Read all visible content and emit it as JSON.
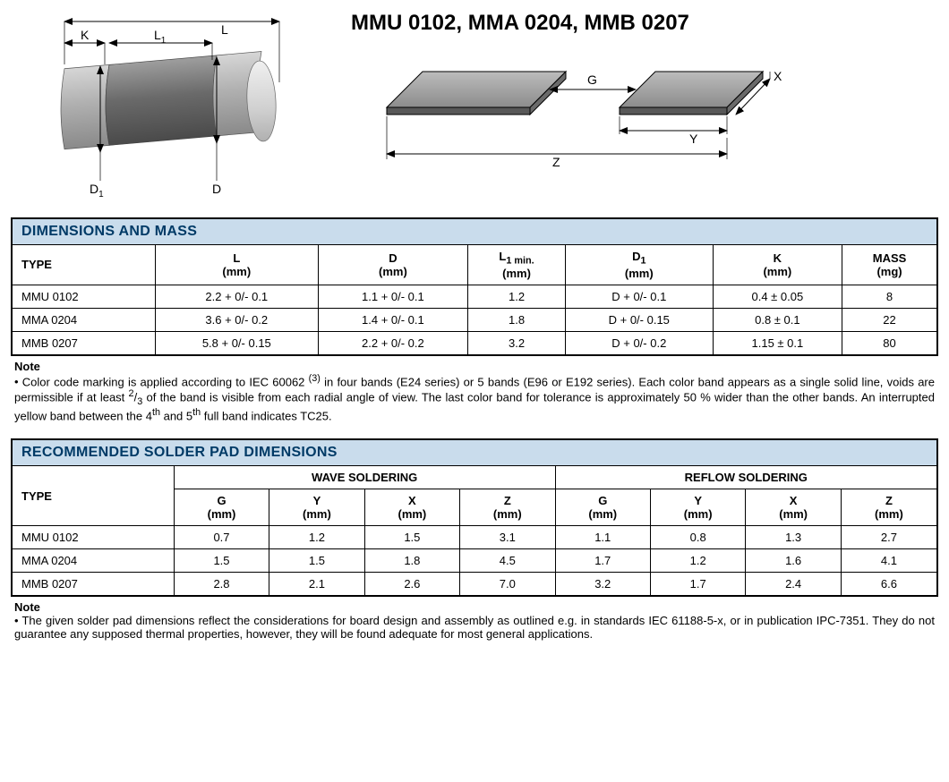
{
  "page_title": "MMU 0102, MMA 0204, MMB 0207",
  "component_diagram": {
    "labels": {
      "L": "L",
      "L1": "L",
      "L1_sub": "1",
      "K": "K",
      "D": "D",
      "D1": "D",
      "D1_sub": "1"
    },
    "colors": {
      "cap_light": "#c6c6c6",
      "cap_dark": "#9c9c9c",
      "body_light": "#8a8a8a",
      "body_dark": "#5a5a5a",
      "face_light": "#e2e2e2",
      "face_dark": "#b8b8b8",
      "line": "#000000"
    }
  },
  "pad_diagram": {
    "labels": {
      "G": "G",
      "X": "X",
      "Y": "Y",
      "Z": "Z"
    },
    "colors": {
      "pad_fill_light": "#a8a8a8",
      "pad_fill_dark": "#7a7a7a",
      "pad_side": "#585858",
      "line": "#000000"
    }
  },
  "table1": {
    "title": "DIMENSIONS AND MASS",
    "columns": [
      {
        "label": "TYPE"
      },
      {
        "label_html": "L",
        "unit": "(mm)"
      },
      {
        "label_html": "D",
        "unit": "(mm)"
      },
      {
        "label_html": "L<sub>1 min.</sub>",
        "unit": "(mm)"
      },
      {
        "label_html": "D<sub>1</sub>",
        "unit": "(mm)"
      },
      {
        "label_html": "K",
        "unit": "(mm)"
      },
      {
        "label_html": "MASS",
        "unit": "(mg)"
      }
    ],
    "rows": [
      [
        "MMU 0102",
        "2.2 + 0/- 0.1",
        "1.1 + 0/- 0.1",
        "1.2",
        "D + 0/- 0.1",
        "0.4 ± 0.05",
        "8"
      ],
      [
        "MMA 0204",
        "3.6 + 0/- 0.2",
        "1.4 + 0/- 0.1",
        "1.8",
        "D + 0/- 0.15",
        "0.8 ± 0.1",
        "22"
      ],
      [
        "MMB 0207",
        "5.8 + 0/- 0.15",
        "2.2 + 0/- 0.2",
        "3.2",
        "D + 0/- 0.2",
        "1.15 ± 0.1",
        "80"
      ]
    ]
  },
  "note1": {
    "heading": "Note",
    "text_html": "Color code marking is applied according to IEC 60062 <sup>(3)</sup> in four bands (E24 series) or 5 bands (E96 or E192 series). Each color band appears as a single solid line, voids are permissible if at least <sup>2</sup>/<sub>3</sub> of the band is visible from each radial angle of view. The last color band for tolerance is approximately 50 % wider than the other bands. An interrupted yellow band between the 4<sup>th</sup> and 5<sup>th</sup> full band indicates TC25."
  },
  "table2": {
    "title": "RECOMMENDED SOLDER PAD DIMENSIONS",
    "group_headers": [
      "WAVE SOLDERING",
      "REFLOW SOLDERING"
    ],
    "type_label": "TYPE",
    "sub_columns": [
      "G",
      "Y",
      "X",
      "Z"
    ],
    "unit": "(mm)",
    "rows": [
      [
        "MMU 0102",
        "0.7",
        "1.2",
        "1.5",
        "3.1",
        "1.1",
        "0.8",
        "1.3",
        "2.7"
      ],
      [
        "MMA 0204",
        "1.5",
        "1.5",
        "1.8",
        "4.5",
        "1.7",
        "1.2",
        "1.6",
        "4.1"
      ],
      [
        "MMB 0207",
        "2.8",
        "2.1",
        "2.6",
        "7.0",
        "3.2",
        "1.7",
        "2.4",
        "6.6"
      ]
    ]
  },
  "note2": {
    "heading": "Note",
    "text_html": "The given solder pad dimensions reflect the considerations for board design and assembly as outlined e.g. in standards IEC 61188-5-x, or in publication IPC-7351. They do not guarantee any supposed thermal properties, however, they will be found adequate for most general applications."
  }
}
